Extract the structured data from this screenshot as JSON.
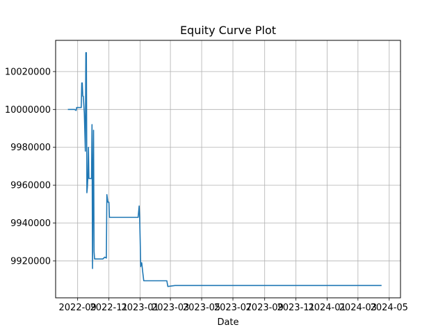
{
  "chart_data": {
    "type": "line",
    "title": "Equity Curve Plot",
    "xlabel": "Date",
    "ylabel": "",
    "grid": true,
    "line_color": "#1f77b4",
    "xlim": [
      "2022-07-20",
      "2024-05-23"
    ],
    "ylim": [
      9900500,
      10036500
    ],
    "x_ticks": [
      "2022-09",
      "2022-11",
      "2023-01",
      "2023-03",
      "2023-05",
      "2023-07",
      "2023-09",
      "2023-11",
      "2024-01",
      "2024-03",
      "2024-05"
    ],
    "y_ticks": [
      9920000,
      9940000,
      9960000,
      9980000,
      10000000,
      10020000
    ],
    "series": [
      {
        "x": [
          "2022-08-14",
          "2022-08-18",
          "2022-08-22",
          "2022-08-26",
          "2022-08-29",
          "2022-08-30",
          "2022-09-01",
          "2022-09-05",
          "2022-09-08",
          "2022-09-09",
          "2022-09-10",
          "2022-09-11",
          "2022-09-12",
          "2022-09-14",
          "2022-09-16",
          "2022-09-17",
          "2022-09-18",
          "2022-09-19",
          "2022-09-20",
          "2022-09-21",
          "2022-09-22",
          "2022-09-23",
          "2022-09-25",
          "2022-09-26",
          "2022-09-27",
          "2022-09-28",
          "2022-09-29",
          "2022-09-30",
          "2022-10-01",
          "2022-10-02",
          "2022-10-03",
          "2022-10-04",
          "2022-10-05",
          "2022-10-06",
          "2022-10-08",
          "2022-10-10",
          "2022-10-13",
          "2022-10-16",
          "2022-10-20",
          "2022-10-24",
          "2022-10-27",
          "2022-10-28",
          "2022-10-30",
          "2022-11-01",
          "2022-11-02",
          "2022-11-03",
          "2022-11-05",
          "2022-11-10",
          "2022-11-20",
          "2022-12-01",
          "2022-12-15",
          "2022-12-28",
          "2022-12-30",
          "2022-12-31",
          "2023-01-01",
          "2023-01-02",
          "2023-01-03",
          "2023-01-04",
          "2023-01-06",
          "2023-01-08",
          "2023-01-15",
          "2023-02-01",
          "2023-02-10",
          "2023-02-20",
          "2023-02-22",
          "2023-02-24",
          "2023-03-10",
          "2023-06-01",
          "2023-10-01",
          "2024-01-01",
          "2024-03-01",
          "2024-04-15"
        ],
        "y": [
          10000000,
          10000000,
          10000000,
          10000000,
          9999500,
          10001000,
          10001000,
          10001000,
          10001000,
          10014000,
          10014000,
          10007000,
          10007000,
          9998000,
          9978000,
          10030000,
          10030000,
          9956000,
          9959000,
          9965000,
          9980000,
          9963500,
          9963500,
          9963500,
          9963500,
          9963500,
          9992000,
          9916000,
          9963000,
          9989000,
          9925000,
          9921000,
          9921000,
          9921000,
          9921000,
          9921000,
          9921000,
          9921000,
          9921000,
          9922000,
          9921500,
          9955000,
          9951000,
          9951000,
          9943000,
          9943000,
          9943000,
          9943000,
          9943000,
          9943000,
          9943000,
          9943000,
          9949000,
          9943000,
          9931000,
          9917000,
          9919000,
          9919000,
          9914000,
          9909500,
          9909500,
          9909500,
          9909500,
          9909500,
          9909500,
          9906500,
          9907000,
          9907000,
          9907000,
          9907000,
          9907000,
          9907000
        ]
      }
    ]
  }
}
